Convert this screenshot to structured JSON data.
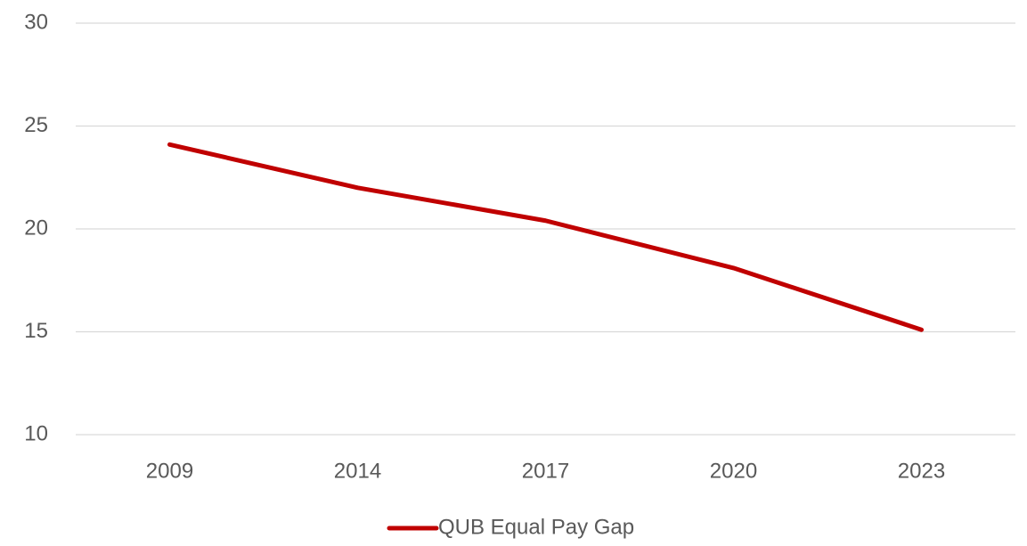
{
  "chart_data": {
    "type": "line",
    "categories": [
      "2009",
      "2014",
      "2017",
      "2020",
      "2023"
    ],
    "series": [
      {
        "name": "QUB Equal Pay Gap",
        "color": "#c00000",
        "values": [
          24.1,
          22.0,
          20.4,
          18.1,
          15.1
        ]
      }
    ],
    "ylim": [
      10,
      30
    ],
    "yticks": [
      10,
      15,
      20,
      25,
      30
    ],
    "grid": true,
    "legend": "bottom"
  }
}
